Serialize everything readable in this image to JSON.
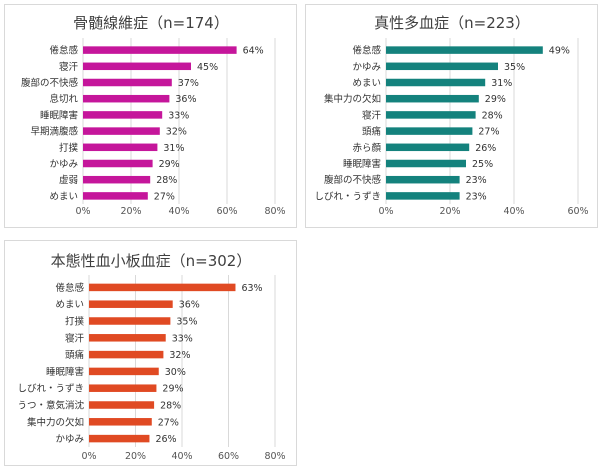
{
  "chart_data": [
    {
      "type": "bar",
      "orientation": "horizontal",
      "title": "骨髄線維症（n=174）",
      "categories": [
        "倦怠感",
        "寝汗",
        "腹部の不快感",
        "息切れ",
        "睡眠障害",
        "早期満腹感",
        "打撲",
        "かゆみ",
        "虚弱",
        "めまい"
      ],
      "values": [
        64,
        45,
        37,
        36,
        33,
        32,
        31,
        29,
        28,
        27
      ],
      "value_labels": [
        "64%",
        "45%",
        "37%",
        "36%",
        "33%",
        "32%",
        "31%",
        "29%",
        "28%",
        "27%"
      ],
      "xlim": [
        0,
        80
      ],
      "ticks": [
        "0%",
        "20%",
        "40%",
        "60%",
        "80%"
      ],
      "color": "#c5169b",
      "grid": true
    },
    {
      "type": "bar",
      "orientation": "horizontal",
      "title": "真性多血症（n=223）",
      "categories": [
        "倦怠感",
        "かゆみ",
        "めまい",
        "集中力の欠如",
        "寝汗",
        "頭痛",
        "赤ら顔",
        "睡眠障害",
        "腹部の不快感",
        "しびれ・うずき"
      ],
      "values": [
        49,
        35,
        31,
        29,
        28,
        27,
        26,
        25,
        23,
        23
      ],
      "value_labels": [
        "49%",
        "35%",
        "31%",
        "29%",
        "28%",
        "27%",
        "26%",
        "25%",
        "23%",
        "23%"
      ],
      "xlim": [
        0,
        60
      ],
      "ticks": [
        "0%",
        "20%",
        "40%",
        "60%"
      ],
      "color": "#14827d",
      "grid": true
    },
    {
      "type": "bar",
      "orientation": "horizontal",
      "title": "本態性血小板血症（n=302）",
      "categories": [
        "倦怠感",
        "めまい",
        "打撲",
        "寝汗",
        "頭痛",
        "睡眠障害",
        "しびれ・うずき",
        "うつ・意気消沈",
        "集中力の欠如",
        "かゆみ"
      ],
      "values": [
        63,
        36,
        35,
        33,
        32,
        30,
        29,
        28,
        27,
        26
      ],
      "value_labels": [
        "63%",
        "36%",
        "35%",
        "33%",
        "32%",
        "30%",
        "29%",
        "28%",
        "27%",
        "26%"
      ],
      "xlim": [
        0,
        80
      ],
      "ticks": [
        "0%",
        "20%",
        "40%",
        "60%",
        "80%"
      ],
      "color": "#e04a23",
      "grid": true
    }
  ]
}
